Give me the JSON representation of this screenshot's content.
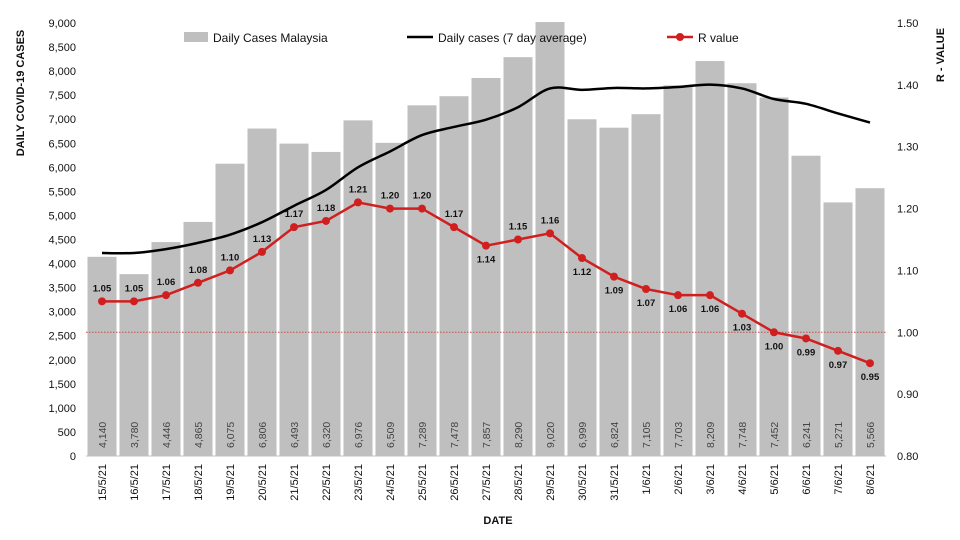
{
  "chart_data": {
    "type": "bar",
    "title": "",
    "xlabel": "DATE",
    "ylabel": "DAILY COVID-19 CASES",
    "y2label": "R - VALUE",
    "ylim": [
      0,
      9000
    ],
    "y2lim": [
      0.8,
      1.5
    ],
    "yticks": [
      "0",
      "500",
      "1,000",
      "1,500",
      "2,000",
      "2,500",
      "3,000",
      "3,500",
      "4,000",
      "4,500",
      "5,000",
      "5,500",
      "6,000",
      "6,500",
      "7,000",
      "7,500",
      "8,000",
      "8,500",
      "9,000"
    ],
    "y2ticks": [
      "0.80",
      "0.90",
      "1.00",
      "1.10",
      "1.20",
      "1.30",
      "1.40",
      "1.50"
    ],
    "categories": [
      "15/5/21",
      "16/5/21",
      "17/5/21",
      "18/5/21",
      "19/5/21",
      "20/5/21",
      "21/5/21",
      "22/5/21",
      "23/5/21",
      "24/5/21",
      "25/5/21",
      "26/5/21",
      "27/5/21",
      "28/5/21",
      "29/5/21",
      "30/5/21",
      "31/5/21",
      "1/6/21",
      "2/6/21",
      "3/6/21",
      "4/6/21",
      "5/6/21",
      "6/6/21",
      "7/6/21",
      "8/6/21"
    ],
    "threshold": 1.0,
    "colors": {
      "bars": "#bfbfbf",
      "avg": "#000000",
      "r": "#d11f1f",
      "threshold": "#c0504d",
      "barLabel": "#444444"
    },
    "series": [
      {
        "name": "Daily Cases Malaysia",
        "type": "bar",
        "values": [
          4140,
          3780,
          4446,
          4865,
          6075,
          6806,
          6493,
          6320,
          6976,
          6509,
          7289,
          7478,
          7857,
          8290,
          9020,
          6999,
          6824,
          7105,
          7703,
          8209,
          7748,
          7452,
          6241,
          5271,
          5566
        ],
        "labels": [
          "4,140",
          "3,780",
          "4,446",
          "4,865",
          "6,075",
          "6,806",
          "6,493",
          "6,320",
          "6,976",
          "6,509",
          "7,289",
          "7,478",
          "7,857",
          "8,290",
          "9,020",
          "6,999",
          "6,824",
          "7,105",
          "7,703",
          "8,209",
          "7,748",
          "7,452",
          "6,241",
          "5,271",
          "5,566"
        ]
      },
      {
        "name": "Daily cases (7 day average)",
        "type": "line",
        "values": [
          4220,
          4220,
          4300,
          4430,
          4600,
          4860,
          5200,
          5530,
          6000,
          6330,
          6670,
          6840,
          6990,
          7250,
          7640,
          7610,
          7650,
          7640,
          7670,
          7720,
          7640,
          7420,
          7320,
          7120,
          6930
        ]
      },
      {
        "name": "R value",
        "type": "line",
        "axis": "right",
        "values": [
          1.05,
          1.05,
          1.06,
          1.08,
          1.1,
          1.13,
          1.17,
          1.18,
          1.21,
          1.2,
          1.2,
          1.17,
          1.14,
          1.15,
          1.16,
          1.12,
          1.09,
          1.07,
          1.06,
          1.06,
          1.03,
          1.0,
          0.99,
          0.97,
          0.95
        ],
        "labels": [
          "1.05",
          "1.05",
          "1.06",
          "1.08",
          "1.10",
          "1.13",
          "1.17",
          "1.18",
          "1.21",
          "1.20",
          "1.20",
          "1.17",
          "1.14",
          "1.15",
          "1.16",
          "1.12",
          "1.09",
          "1.07",
          "1.06",
          "1.06",
          "1.03",
          "1.00",
          "0.99",
          "0.97",
          "0.95"
        ]
      }
    ],
    "legend": [
      "Daily Cases Malaysia",
      "Daily cases (7 day average)",
      "R value"
    ]
  }
}
